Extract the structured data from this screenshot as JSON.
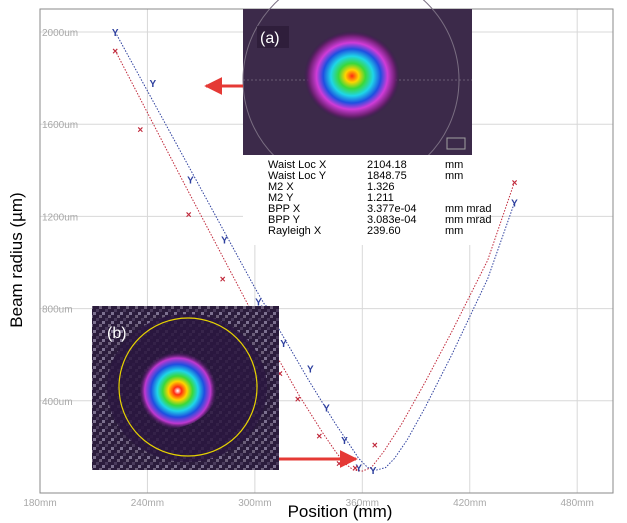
{
  "chart_data": {
    "type": "scatter",
    "xlabel": "Position (mm)",
    "ylabel": "Beam radius (µm)",
    "xlim": [
      180,
      500
    ],
    "ylim": [
      0,
      2100
    ],
    "x_ticks": [
      "180mm",
      "240mm",
      "300mm",
      "360mm",
      "420mm",
      "480mm"
    ],
    "y_ticks": [
      "2000um",
      "1600um",
      "1200um",
      "800um",
      "400um"
    ],
    "grid": true,
    "series": [
      {
        "marker": "Y",
        "color": "#2d3f9e",
        "points": [
          [
            222,
            2000
          ],
          [
            243,
            1780
          ],
          [
            264,
            1360
          ],
          [
            283,
            1100
          ],
          [
            302,
            830
          ],
          [
            305,
            800
          ],
          [
            316,
            650
          ],
          [
            331,
            540
          ],
          [
            340,
            370
          ],
          [
            350,
            230
          ],
          [
            358,
            110
          ],
          [
            366,
            100
          ],
          [
            445,
            1260
          ]
        ],
        "fit": [
          [
            222,
            2000
          ],
          [
            260,
            1460
          ],
          [
            300,
            890
          ],
          [
            330,
            490
          ],
          [
            345,
            300
          ],
          [
            352,
            220
          ],
          [
            358,
            150
          ],
          [
            363,
            110
          ],
          [
            368,
            100
          ],
          [
            373,
            110
          ],
          [
            378,
            150
          ],
          [
            385,
            230
          ],
          [
            395,
            370
          ],
          [
            410,
            600
          ],
          [
            430,
            930
          ],
          [
            445,
            1260
          ]
        ]
      },
      {
        "marker": "X",
        "color": "#c0283a",
        "points": [
          [
            222,
            1920
          ],
          [
            236,
            1580
          ],
          [
            263,
            1210
          ],
          [
            282,
            930
          ],
          [
            301,
            710
          ],
          [
            304,
            650
          ],
          [
            314,
            520
          ],
          [
            324,
            410
          ],
          [
            336,
            250
          ],
          [
            347,
            130
          ],
          [
            356,
            110
          ],
          [
            367,
            210
          ],
          [
            445,
            1350
          ]
        ],
        "fit": [
          [
            222,
            1920
          ],
          [
            260,
            1350
          ],
          [
            300,
            760
          ],
          [
            325,
            420
          ],
          [
            338,
            260
          ],
          [
            345,
            180
          ],
          [
            350,
            130
          ],
          [
            355,
            100
          ],
          [
            360,
            95
          ],
          [
            365,
            110
          ],
          [
            372,
            180
          ],
          [
            382,
            300
          ],
          [
            395,
            480
          ],
          [
            410,
            700
          ],
          [
            430,
            1010
          ],
          [
            445,
            1350
          ]
        ]
      }
    ],
    "insets": [
      {
        "label": "(a)"
      },
      {
        "label": "(b)"
      }
    ],
    "results": [
      {
        "name": "Waist Loc X",
        "value": "2104.18",
        "unit": "mm"
      },
      {
        "name": "Waist Loc Y",
        "value": "1848.75",
        "unit": "mm"
      },
      {
        "name": "M2 X",
        "value": "1.326",
        "unit": ""
      },
      {
        "name": "M2 Y",
        "value": "1.211",
        "unit": ""
      },
      {
        "name": "BPP X",
        "value": "3.377e-04",
        "unit": "mm mrad"
      },
      {
        "name": "BPP Y",
        "value": "3.083e-04",
        "unit": "mm mrad"
      },
      {
        "name": "Rayleigh X",
        "value": "239.60",
        "unit": "mm"
      }
    ],
    "colors": {
      "arrow": "#e53935",
      "grid": "#d8d8d8",
      "ring": "#e6d200"
    }
  }
}
